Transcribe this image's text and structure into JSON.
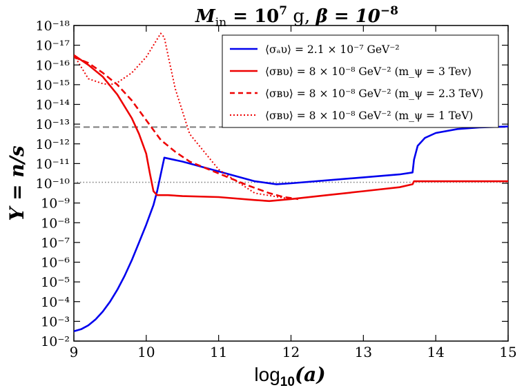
{
  "chart_data": {
    "type": "line",
    "title": "M_in = 10^7 g,  β = 10^-8",
    "title_parts": {
      "m_label": "M",
      "m_sub": "in",
      "m_eq": " = 10",
      "m_exp": "7",
      "unit": " g,  ",
      "beta": "β = 10",
      "beta_exp": "−8"
    },
    "xlabel": "log10(a)",
    "xlabel_parts": {
      "main": "log",
      "sub": "10",
      "arg": "(a)"
    },
    "ylabel": "Y = n/s",
    "xlim": [
      9,
      15
    ],
    "ylim_log10": [
      -18,
      -2
    ],
    "x_ticks": [
      9,
      10,
      11,
      12,
      13,
      14,
      15
    ],
    "x_tick_labels": [
      "9",
      "10",
      "11",
      "12",
      "13",
      "14",
      "15"
    ],
    "y_ticks_log10": [
      -2,
      -3,
      -4,
      -5,
      -6,
      -7,
      -8,
      -9,
      -10,
      -11,
      -12,
      -13,
      -14,
      -15,
      -16,
      -17,
      -18
    ],
    "y_tick_labels": [
      "10⁻²",
      "10⁻³",
      "10⁻⁴",
      "10⁻⁵",
      "10⁻⁶",
      "10⁻⁷",
      "10⁻⁸",
      "10⁻⁹",
      "10⁻¹⁰",
      "10⁻¹¹",
      "10⁻¹²",
      "10⁻¹³",
      "10⁻¹⁴",
      "10⁻¹⁵",
      "10⁻¹⁶",
      "10⁻¹⁷",
      "10⁻¹⁸"
    ],
    "legend_position": "top-right",
    "series": [
      {
        "name": "⟨σ_a υ⟩ = 2.1 × 10^-7 GeV^-2",
        "label": "⟨σₐυ⟩ = 2.1 × 10⁻⁷ GeV⁻²",
        "color": "#0000ee",
        "style": "solid",
        "x": [
          9.0,
          9.1,
          9.2,
          9.3,
          9.4,
          9.5,
          9.6,
          9.7,
          9.8,
          9.9,
          10.0,
          10.1,
          10.15,
          10.25,
          10.5,
          11.0,
          11.5,
          11.8,
          12.0,
          12.5,
          13.0,
          13.5,
          13.68,
          13.7,
          13.75,
          13.85,
          14.0,
          14.3,
          14.6,
          15.0
        ],
        "log10_y": [
          -2.5,
          -2.6,
          -2.8,
          -3.1,
          -3.5,
          -4.0,
          -4.6,
          -5.3,
          -6.1,
          -7.0,
          -7.9,
          -8.9,
          -9.6,
          -11.3,
          -11.1,
          -10.6,
          -10.1,
          -9.95,
          -10.0,
          -10.15,
          -10.3,
          -10.45,
          -10.55,
          -11.2,
          -11.9,
          -12.3,
          -12.55,
          -12.75,
          -12.83,
          -12.88
        ]
      },
      {
        "name": "⟨σ_B υ⟩ = 8 × 10^-8 GeV^-2 (m_ψ = 3 Tev)",
        "label": "⟨σʙυ⟩ = 8 × 10⁻⁸ GeV⁻² (m_ψ = 3 Tev)",
        "color": "#ee0000",
        "style": "solid",
        "x": [
          9.0,
          9.2,
          9.4,
          9.6,
          9.8,
          9.9,
          10.0,
          10.05,
          10.1,
          10.15,
          10.3,
          10.5,
          11.0,
          11.5,
          11.7,
          12.0,
          12.5,
          13.0,
          13.5,
          13.68,
          13.7,
          14.0,
          14.5,
          15.0
        ],
        "log10_y": [
          -16.5,
          -16.0,
          -15.4,
          -14.5,
          -13.3,
          -12.5,
          -11.5,
          -10.5,
          -9.6,
          -9.4,
          -9.4,
          -9.35,
          -9.3,
          -9.15,
          -9.1,
          -9.2,
          -9.4,
          -9.6,
          -9.8,
          -9.95,
          -10.1,
          -10.1,
          -10.1,
          -10.1
        ]
      },
      {
        "name": "⟨σ_B υ⟩ = 8 × 10^-8 GeV^-2 (m_ψ = 2.3 TeV)",
        "label": "⟨σʙυ⟩ = 8 × 10⁻⁸ GeV⁻² (m_ψ = 2.3 TeV)",
        "color": "#ee0000",
        "style": "dashed",
        "x": [
          9.0,
          9.2,
          9.4,
          9.6,
          9.8,
          10.0,
          10.2,
          10.4,
          10.6,
          11.0,
          11.4,
          11.7,
          11.9,
          12.1
        ],
        "log10_y": [
          -16.4,
          -16.1,
          -15.6,
          -15.0,
          -14.2,
          -13.2,
          -12.2,
          -11.6,
          -11.1,
          -10.5,
          -9.9,
          -9.5,
          -9.3,
          -9.2
        ]
      },
      {
        "name": "⟨σ_B υ⟩ = 8 × 10^-8 GeV^-2 (m_ψ = 1 TeV)",
        "label": "⟨σʙυ⟩ = 8 × 10⁻⁸ GeV⁻² (m_ψ = 1 TeV)",
        "color": "#ee0000",
        "style": "dotted",
        "x": [
          9.0,
          9.2,
          9.4,
          9.5,
          9.6,
          9.8,
          10.0,
          10.1,
          10.2,
          10.25,
          10.3,
          10.4,
          10.6,
          11.0,
          11.5,
          12.0
        ],
        "log10_y": [
          -16.5,
          -15.3,
          -15.05,
          -15.0,
          -15.1,
          -15.6,
          -16.4,
          -17.0,
          -17.6,
          -17.4,
          -16.5,
          -14.8,
          -12.5,
          -10.7,
          -9.5,
          -9.2
        ]
      }
    ],
    "reference_lines": [
      {
        "name": "gray-dotted-reference",
        "log10_y": -10.05,
        "color": "#808080",
        "style": "dotted"
      },
      {
        "name": "gray-dashed-reference",
        "log10_y": -12.85,
        "color": "#808080",
        "style": "dashed"
      }
    ]
  }
}
